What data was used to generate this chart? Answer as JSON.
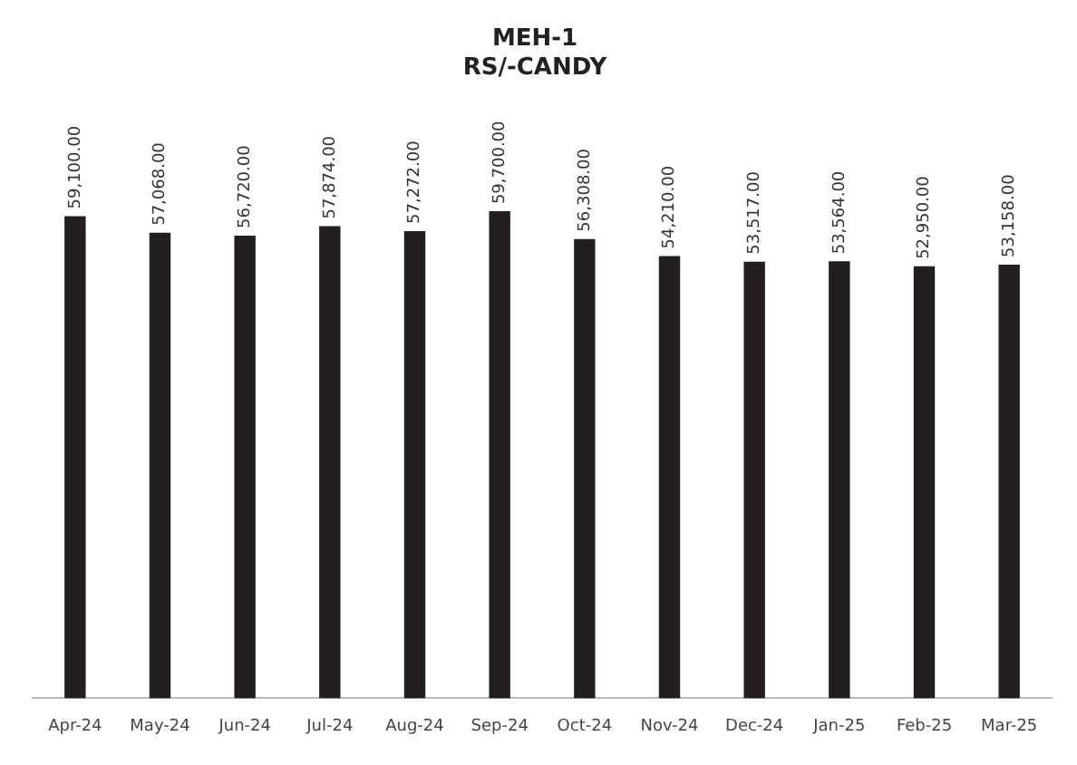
{
  "chart_data": {
    "type": "bar",
    "title": "MEH-1",
    "subtitle": "RS/-CANDY",
    "categories": [
      "Apr-24",
      "May-24",
      "Jun-24",
      "Jul-24",
      "Aug-24",
      "Sep-24",
      "Oct-24",
      "Nov-24",
      "Dec-24",
      "Jan-25",
      "Feb-25",
      "Mar-25"
    ],
    "values": [
      59100,
      57068,
      56720,
      57874,
      57272,
      59700,
      56308,
      54210,
      53517,
      53564,
      52950,
      53158
    ],
    "value_labels": [
      "59,100.00",
      "57,068.00",
      "56,720.00",
      "57,874.00",
      "57,272.00",
      "59,700.00",
      "56,308.00",
      "54,210.00",
      "53,517.00",
      "53,564.00",
      "52,950.00",
      "53,158.00"
    ],
    "color": "#231f20",
    "grid": false,
    "legend": false
  }
}
